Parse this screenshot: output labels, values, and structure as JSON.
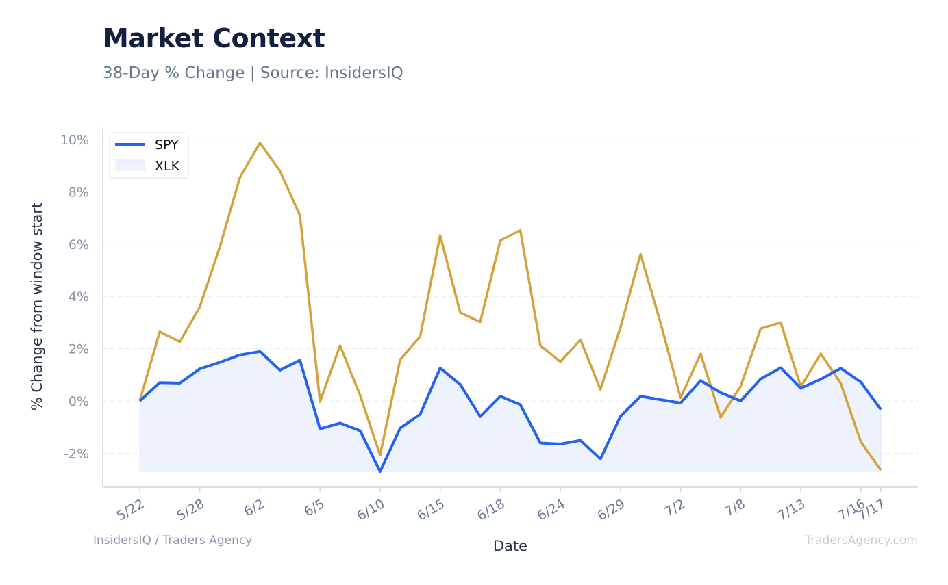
{
  "header": {
    "title": "Market Context",
    "subtitle": "38-Day % Change | Source: InsidersIQ"
  },
  "footer": {
    "left": "InsidersIQ / Traders Agency",
    "right": "TradersAgency.com"
  },
  "colors": {
    "spy": "#2563eb",
    "xlk": "#d4a13a",
    "fill": "#eef2fd",
    "grid": "#e5e9ef",
    "axis": "#cfd6e0"
  },
  "chart_data": {
    "type": "line",
    "xlabel": "Date",
    "ylabel": "% Change from window start",
    "ylim": [
      -3.3,
      10.5
    ],
    "yticks": [
      -2,
      0,
      2,
      4,
      6,
      8,
      10
    ],
    "ytick_labels": [
      "-2%",
      "0%",
      "2%",
      "4%",
      "6%",
      "8%",
      "10%"
    ],
    "grid": "horizontal-dashed",
    "legend": "top-left",
    "x_tick_indices": [
      0,
      3,
      6,
      9,
      12,
      15,
      18,
      21,
      24,
      27,
      30,
      33,
      36,
      37
    ],
    "x_tick_labels": [
      "5/22",
      "5/28",
      "6/2",
      "6/5",
      "6/10",
      "6/15",
      "6/18",
      "6/24",
      "6/29",
      "7/2",
      "7/8",
      "7/13",
      "7/16",
      "7/17"
    ],
    "x_count": 38,
    "series": [
      {
        "name": "SPY",
        "values": [
          0.0,
          0.7,
          0.68,
          1.23,
          1.48,
          1.76,
          1.89,
          1.18,
          1.56,
          -1.07,
          -0.85,
          -1.14,
          -2.7,
          -1.04,
          -0.51,
          1.26,
          0.63,
          -0.6,
          0.18,
          -0.14,
          -1.61,
          -1.65,
          -1.51,
          -2.22,
          -0.59,
          0.18,
          0.05,
          -0.08,
          0.78,
          0.32,
          0.0,
          0.84,
          1.27,
          0.49,
          0.83,
          1.25,
          0.72,
          -0.33
        ]
      },
      {
        "name": "XLK",
        "values": [
          0.0,
          2.65,
          2.26,
          3.6,
          5.9,
          8.55,
          9.88,
          8.8,
          7.1,
          -0.03,
          2.12,
          0.22,
          -2.08,
          1.58,
          2.47,
          6.33,
          3.38,
          3.02,
          6.14,
          6.53,
          2.12,
          1.5,
          2.34,
          0.44,
          2.81,
          5.62,
          2.99,
          0.12,
          1.8,
          -0.63,
          0.56,
          2.77,
          3.0,
          0.54,
          1.81,
          0.67,
          -1.57,
          -2.65
        ]
      }
    ]
  }
}
